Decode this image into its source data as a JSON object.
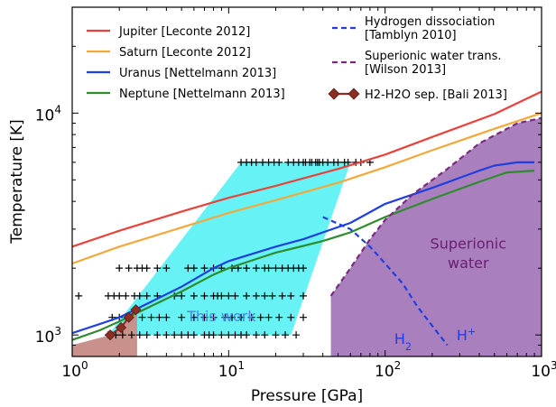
{
  "chart_data": {
    "type": "line",
    "xlabel": "Pressure [GPa]",
    "ylabel": "Temperature [K]",
    "xscale": "log",
    "yscale": "log",
    "xlim": [
      1,
      1000
    ],
    "ylim": [
      800,
      30000
    ],
    "grid": false,
    "legend_placement": "top",
    "x_ticks": [
      {
        "value": 1,
        "base": "10",
        "exp": "0"
      },
      {
        "value": 10,
        "base": "10",
        "exp": "1"
      },
      {
        "value": 100,
        "base": "10",
        "exp": "2"
      },
      {
        "value": 1000,
        "base": "10",
        "exp": "3"
      }
    ],
    "y_ticks": [
      {
        "value": 1000,
        "base": "10",
        "exp": "3"
      },
      {
        "value": 10000,
        "base": "10",
        "exp": "4"
      }
    ],
    "series": [
      {
        "name": "Jupiter [Leconte 2012]",
        "color": "#e8433b",
        "points": [
          [
            1,
            2500
          ],
          [
            2,
            2950
          ],
          [
            5,
            3600
          ],
          [
            10,
            4150
          ],
          [
            20,
            4700
          ],
          [
            50,
            5600
          ],
          [
            100,
            6500
          ],
          [
            200,
            7800
          ],
          [
            500,
            9900
          ],
          [
            1000,
            12500
          ]
        ]
      },
      {
        "name": "Saturn [Leconte 2012]",
        "color": "#f2a93b",
        "points": [
          [
            1,
            2100
          ],
          [
            2,
            2500
          ],
          [
            5,
            3050
          ],
          [
            10,
            3550
          ],
          [
            20,
            4050
          ],
          [
            50,
            4850
          ],
          [
            100,
            5700
          ],
          [
            200,
            6800
          ],
          [
            500,
            8500
          ],
          [
            1000,
            10000
          ]
        ]
      },
      {
        "name": "Uranus [Nettelmann 2013]",
        "color": "#1f3fe0",
        "points": [
          [
            1,
            1020
          ],
          [
            1.5,
            1120
          ],
          [
            2,
            1200
          ],
          [
            3,
            1380
          ],
          [
            5,
            1650
          ],
          [
            8,
            2000
          ],
          [
            10,
            2150
          ],
          [
            15,
            2350
          ],
          [
            20,
            2500
          ],
          [
            30,
            2700
          ],
          [
            40,
            2900
          ],
          [
            60,
            3200
          ],
          [
            100,
            3900
          ],
          [
            200,
            4600
          ],
          [
            400,
            5500
          ],
          [
            500,
            5800
          ],
          [
            700,
            6000
          ],
          [
            900,
            6000
          ]
        ]
      },
      {
        "name": "Neptune [Nettelmann 2013]",
        "color": "#2e8b2e",
        "points": [
          [
            1,
            950
          ],
          [
            1.5,
            1050
          ],
          [
            2,
            1150
          ],
          [
            3,
            1320
          ],
          [
            5,
            1570
          ],
          [
            8,
            1870
          ],
          [
            10,
            2000
          ],
          [
            15,
            2200
          ],
          [
            20,
            2350
          ],
          [
            30,
            2520
          ],
          [
            40,
            2650
          ],
          [
            60,
            2900
          ],
          [
            100,
            3400
          ],
          [
            200,
            4100
          ],
          [
            400,
            4900
          ],
          [
            600,
            5400
          ],
          [
            900,
            5500
          ]
        ]
      },
      {
        "name": "Hydrogen dissociation [Tamblyn 2010]",
        "color": "#1f3fe0",
        "dashed": true,
        "points": [
          [
            40,
            3400
          ],
          [
            60,
            3000
          ],
          [
            80,
            2500
          ],
          [
            100,
            2100
          ],
          [
            130,
            1700
          ],
          [
            160,
            1350
          ],
          [
            200,
            1100
          ],
          [
            250,
            900
          ]
        ]
      },
      {
        "name": "Superionic water trans. [Wilson 2013]",
        "color": "#7a2a7e",
        "dashed": true,
        "points": [
          [
            45,
            1500
          ],
          [
            60,
            2000
          ],
          [
            80,
            2700
          ],
          [
            100,
            3300
          ],
          [
            150,
            4300
          ],
          [
            250,
            5600
          ],
          [
            400,
            7300
          ],
          [
            700,
            9000
          ],
          [
            1000,
            9500
          ]
        ]
      },
      {
        "name": "H2-H2O sep. [Bali 2013]",
        "color": "#8b2e23",
        "marker": "diamond",
        "points": [
          [
            1.75,
            1000
          ],
          [
            2.05,
            1080
          ],
          [
            2.3,
            1200
          ],
          [
            2.55,
            1300
          ]
        ]
      }
    ],
    "regions": [
      {
        "name": "This work",
        "color": "#67f3f5",
        "polygon": [
          [
            1.7,
            1000
          ],
          [
            25,
            1000
          ],
          [
            60,
            6000
          ],
          [
            12,
            6000
          ]
        ]
      },
      {
        "name": "Superionic water",
        "color": "#a980bd",
        "polygon": [
          [
            45,
            800
          ],
          [
            1000,
            800
          ],
          [
            1000,
            9500
          ],
          [
            700,
            9000
          ],
          [
            400,
            7300
          ],
          [
            250,
            5600
          ],
          [
            150,
            4300
          ],
          [
            100,
            3300
          ],
          [
            80,
            2700
          ],
          [
            60,
            2000
          ],
          [
            45,
            1500
          ]
        ]
      },
      {
        "name": "",
        "color": "#c9918b",
        "polygon": [
          [
            1,
            800
          ],
          [
            2.6,
            800
          ],
          [
            2.6,
            1300
          ],
          [
            2.3,
            1200
          ],
          [
            2.05,
            1080
          ],
          [
            1.75,
            1000
          ],
          [
            1,
            900
          ]
        ]
      }
    ],
    "crosses": [
      {
        "y": 6000,
        "x": [
          12,
          13,
          14,
          15,
          16.5,
          18,
          19.5,
          21,
          24,
          26,
          28,
          30,
          31,
          33,
          34,
          36,
          37,
          38,
          40,
          43,
          47,
          50,
          55,
          58,
          65,
          70,
          80
        ]
      },
      {
        "y": 2000,
        "x": [
          2,
          2.3,
          2.6,
          2.8,
          3,
          3.5,
          4,
          5.5,
          6,
          7,
          8,
          9,
          10.5,
          11.5,
          13,
          15,
          17,
          18,
          20,
          22,
          24,
          26,
          28,
          30
        ]
      },
      {
        "y": 1500,
        "x": [
          1.1,
          1.7,
          1.85,
          2,
          2.2,
          2.5,
          2.7,
          3,
          3.5,
          4.5,
          5,
          6,
          7,
          8,
          8.5,
          9,
          10,
          11,
          13,
          15,
          17,
          19,
          22,
          25,
          30
        ]
      },
      {
        "y": 1200,
        "x": [
          1.8,
          2,
          2.3,
          2.8,
          3.2,
          3.6,
          4,
          5,
          6,
          7,
          8,
          9.5,
          10.5,
          12,
          14,
          16,
          18,
          21,
          25,
          30
        ]
      },
      {
        "y": 1000,
        "x": [
          1.7,
          1.9,
          2.1,
          2.4,
          2.7,
          3,
          3.5,
          4,
          4.5,
          5,
          5.5,
          6,
          7,
          7.5,
          8,
          9,
          10,
          11,
          12,
          13,
          15,
          17,
          20,
          23,
          27
        ]
      }
    ],
    "annotations": [
      {
        "text": "This work",
        "x": 9,
        "y": 1150,
        "color": "#4a86e8",
        "size": 16
      },
      {
        "text": "Superionic",
        "x": 340,
        "y": 2450,
        "color": "#6a1d72",
        "size": 16
      },
      {
        "text": "water",
        "x": 340,
        "y": 2000,
        "color": "#6a1d72",
        "size": 16
      },
      {
        "text": "H",
        "sub": "2",
        "x": 130,
        "y": 910,
        "color": "#1f3fe0",
        "size": 16
      },
      {
        "text": "H",
        "sup": "+",
        "x": 330,
        "y": 945,
        "color": "#1f3fe0",
        "size": 16
      }
    ]
  }
}
